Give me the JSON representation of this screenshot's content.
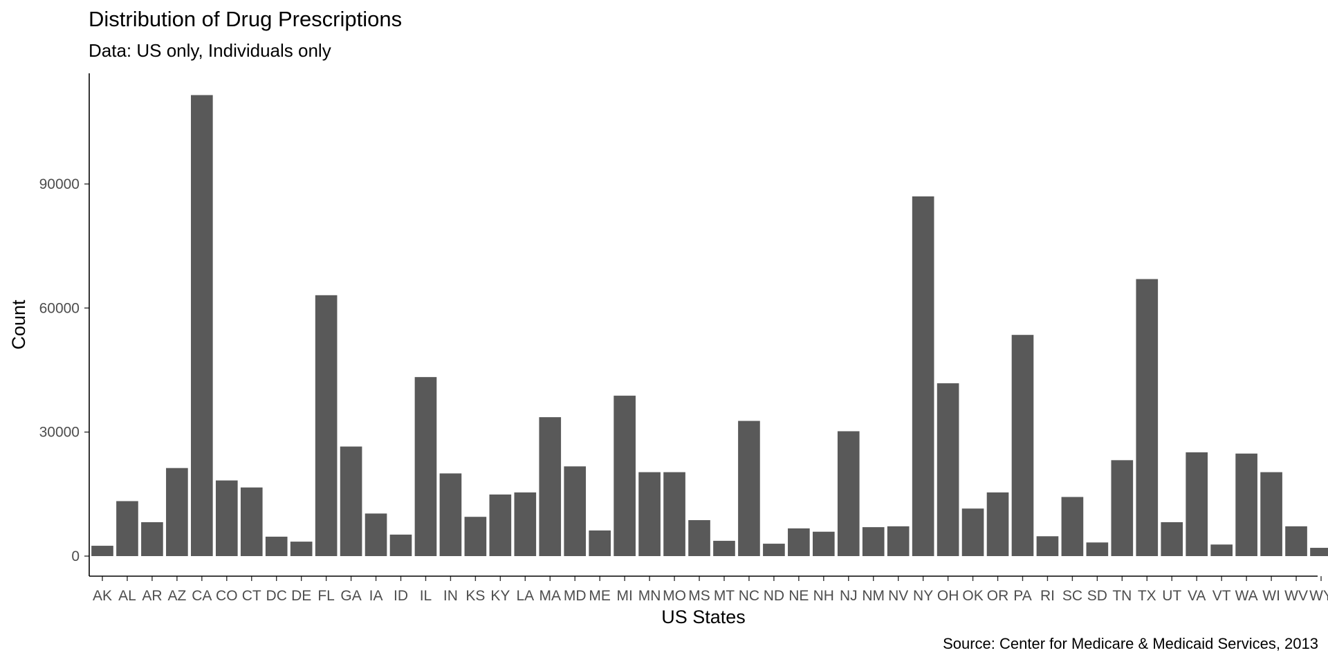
{
  "chart_data": {
    "type": "bar",
    "title": "Distribution of Drug Prescriptions",
    "subtitle": "Data: US only, Individuals only",
    "caption": "Source: Center for Medicare & Medicaid Services, 2013",
    "xlabel": "US States",
    "ylabel": "Count",
    "ylim": [
      0,
      115000
    ],
    "yticks": [
      0,
      30000,
      60000,
      90000
    ],
    "grid": false,
    "bar_color": "#595959",
    "categories": [
      "AK",
      "AL",
      "AR",
      "AZ",
      "CA",
      "CO",
      "CT",
      "DC",
      "DE",
      "FL",
      "GA",
      "IA",
      "ID",
      "IL",
      "IN",
      "KS",
      "KY",
      "LA",
      "MA",
      "MD",
      "ME",
      "MI",
      "MN",
      "MO",
      "MS",
      "MT",
      "NC",
      "ND",
      "NE",
      "NH",
      "NJ",
      "NM",
      "NV",
      "NY",
      "OH",
      "OK",
      "OR",
      "PA",
      "RI",
      "SC",
      "SD",
      "TN",
      "TX",
      "UT",
      "VA",
      "VT",
      "WA",
      "WI",
      "WV",
      "WY"
    ],
    "values": [
      2500,
      13300,
      8200,
      21300,
      111500,
      18300,
      16600,
      4700,
      3500,
      63100,
      26500,
      10300,
      5200,
      43300,
      20000,
      9500,
      14900,
      15400,
      33600,
      21700,
      6200,
      38800,
      20300,
      20300,
      8700,
      3700,
      32700,
      3000,
      6700,
      5900,
      30200,
      7000,
      7200,
      87000,
      41800,
      11500,
      15400,
      53500,
      4800,
      14300,
      3300,
      23200,
      67000,
      8200,
      25100,
      2800,
      24800,
      20300,
      7200,
      2000
    ]
  }
}
